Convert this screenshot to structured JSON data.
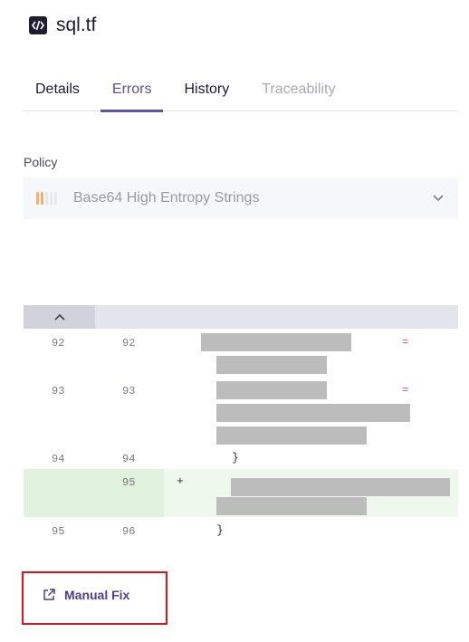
{
  "header": {
    "title": "sql.tf",
    "icon": "code-file-icon"
  },
  "tabs": [
    {
      "label": "Details",
      "state": "normal"
    },
    {
      "label": "Errors",
      "state": "active"
    },
    {
      "label": "History",
      "state": "normal"
    },
    {
      "label": "Traceability",
      "state": "disabled"
    }
  ],
  "policy": {
    "label": "Policy",
    "value": "Base64 High Entropy Strings",
    "severity_filled": 2,
    "severity_total": 5
  },
  "diff": {
    "rows": [
      {
        "old": "92",
        "new": "92"
      },
      {
        "old": "93",
        "new": "93"
      },
      {
        "old": "94",
        "new": "94",
        "text": "}"
      },
      {
        "old": "",
        "new": "95",
        "marker": "+"
      },
      {
        "old": "95",
        "new": "96",
        "text": "}"
      }
    ],
    "equals_sign": "="
  },
  "manual_fix": {
    "label": "Manual Fix",
    "icon": "external-link-icon"
  },
  "colors": {
    "accent": "#5f54a8",
    "highlight_border": "#e0141e",
    "severity": "#f6b26b",
    "added_row": "#eef8ec"
  }
}
